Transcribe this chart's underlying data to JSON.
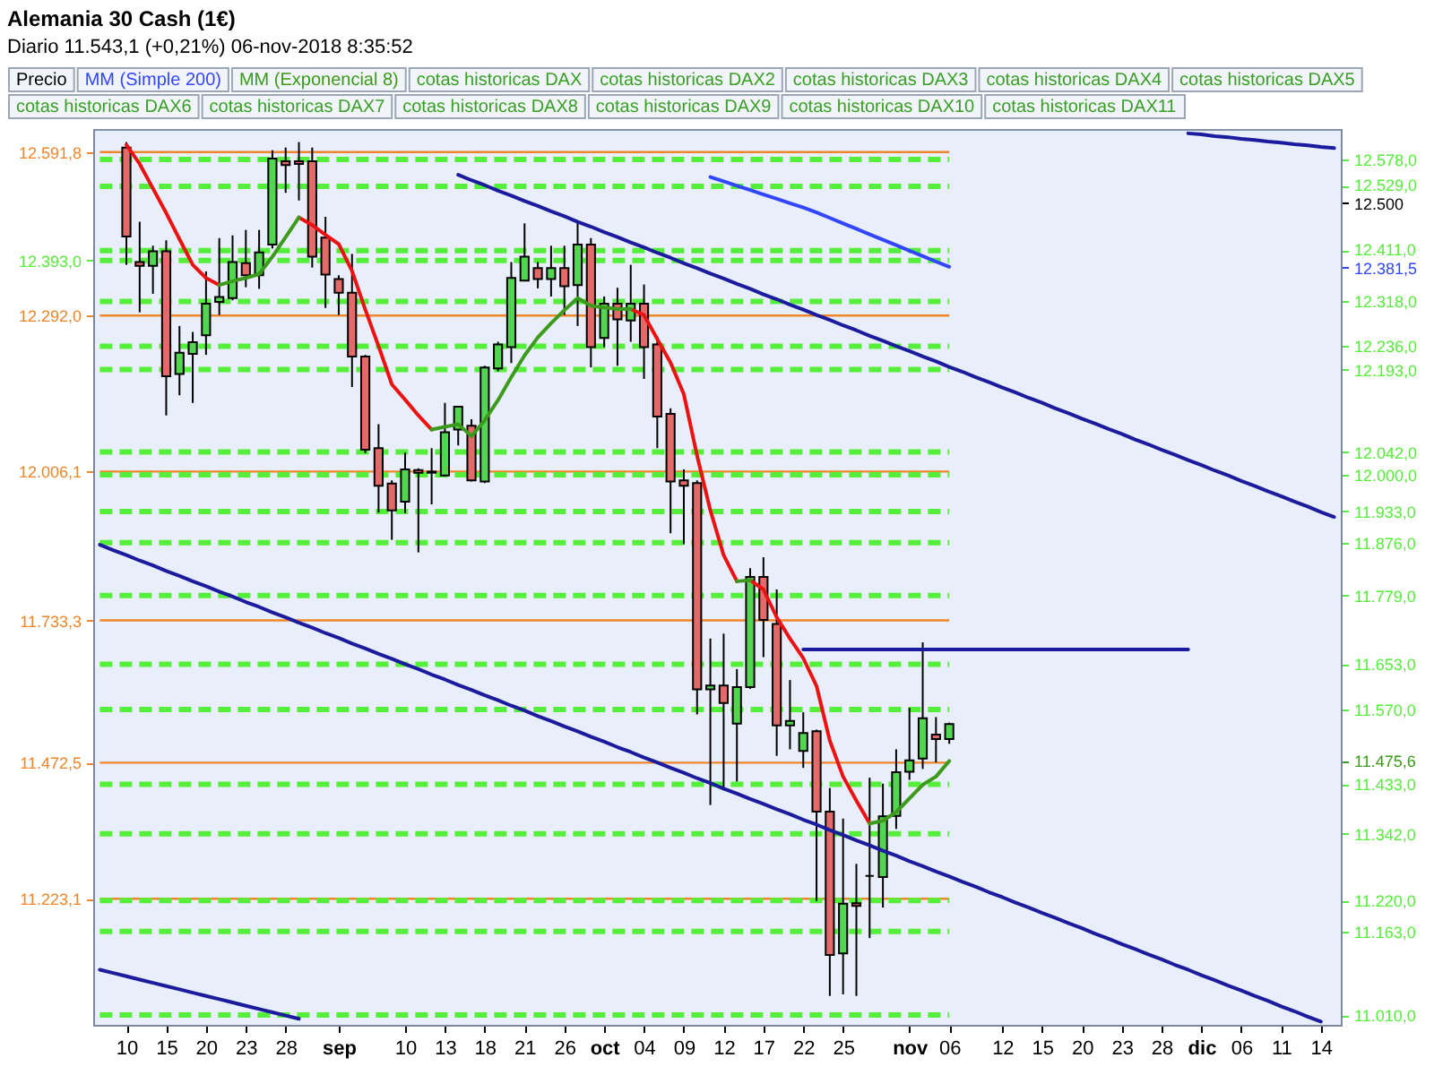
{
  "chart_data": {
    "type": "candlestick",
    "title": "Alemania 30 Cash (1€)",
    "subtitle": "Diario 11.543,1 (+0,21%) 06-nov-2018 8:35:52",
    "categories": [
      null,
      null,
      "10",
      null,
      null,
      "15",
      null,
      null,
      "20",
      null,
      null,
      "23",
      null,
      null,
      "28",
      null,
      null,
      null,
      "sep",
      null,
      null,
      null,
      null,
      "10",
      null,
      null,
      "13",
      null,
      null,
      "18",
      null,
      null,
      "21",
      null,
      null,
      "26",
      null,
      null,
      "oct",
      null,
      null,
      "04",
      null,
      null,
      "09",
      null,
      null,
      "12",
      null,
      null,
      "17",
      null,
      null,
      "22",
      null,
      null,
      "25",
      null,
      null,
      null,
      null,
      "nov",
      null,
      null,
      "06",
      null,
      null,
      null,
      "12",
      null,
      null,
      "15",
      null,
      null,
      "20",
      null,
      null,
      "23",
      null,
      null,
      "28",
      null,
      null,
      "dic",
      null,
      null,
      "06",
      null,
      null,
      "11",
      null,
      null,
      "14",
      null
    ],
    "ylim": [
      10992,
      12634
    ],
    "yticks": [
      {
        "value": 12578,
        "label": "12.578,0"
      },
      {
        "value": 12529,
        "label": "12.529,0"
      },
      {
        "value": 12500,
        "label": "12.500"
      },
      {
        "value": 12411,
        "label": "12.411,0"
      },
      {
        "value": 12381.5,
        "label": "12.381,5"
      },
      {
        "value": 12318,
        "label": "12.318,0"
      },
      {
        "value": 12236,
        "label": "12.236,0"
      },
      {
        "value": 12193,
        "label": "12.193,0"
      },
      {
        "value": 12042,
        "label": "12.042,0"
      },
      {
        "value": 12000,
        "label": "12.000,0"
      },
      {
        "value": 11933,
        "label": "11.933,0"
      },
      {
        "value": 11876,
        "label": "11.876,0"
      },
      {
        "value": 11779,
        "label": "11.779,0"
      },
      {
        "value": 11653,
        "label": "11.653,0"
      },
      {
        "value": 11570,
        "label": "11.570,0"
      },
      {
        "value": 11475.6,
        "label": "11.475,6"
      },
      {
        "value": 11433,
        "label": "11.433,0"
      },
      {
        "value": 11342,
        "label": "11.342,0"
      },
      {
        "value": 11220,
        "label": "11.220,0"
      },
      {
        "value": 11163,
        "label": "11.163,0"
      },
      {
        "value": 11010,
        "label": "11.010,0"
      }
    ],
    "y2lim": [
      10992,
      12634
    ],
    "y2ticks": [
      {
        "value": 12591.8,
        "label": "12.591,8"
      },
      {
        "value": 12393,
        "label": "12.393,0"
      },
      {
        "value": 12292,
        "label": "12.292,0"
      },
      {
        "value": 12006.1,
        "label": "12.006,1"
      },
      {
        "value": 11733.3,
        "label": "11.733,3"
      },
      {
        "value": 11472.5,
        "label": "11.472,5"
      },
      {
        "value": 11223.1,
        "label": "11.223,1"
      }
    ],
    "series": [
      {
        "name": "Precio",
        "color": "#000000",
        "ohlc": [
          null,
          null,
          [
            12600,
            12610,
            12385,
            12437
          ],
          [
            12390,
            12464,
            12298,
            12383
          ],
          [
            12383,
            12420,
            12332,
            12410
          ],
          [
            12410,
            12430,
            12109,
            12181
          ],
          [
            12185,
            12273,
            12146,
            12224
          ],
          [
            12222,
            12262,
            12132,
            12243
          ],
          [
            12256,
            12373,
            12220,
            12314
          ],
          [
            12317,
            12434,
            12293,
            12326
          ],
          [
            12324,
            12439,
            12320,
            12390
          ],
          [
            12388,
            12449,
            12344,
            12366
          ],
          [
            12366,
            12449,
            12341,
            12408
          ],
          [
            12422,
            12595,
            12415,
            12580
          ],
          [
            12575,
            12600,
            12517,
            12568
          ],
          [
            12575,
            12610,
            12503,
            12570
          ],
          [
            12575,
            12600,
            12380,
            12400
          ],
          [
            12435,
            12473,
            12306,
            12367
          ],
          [
            12359,
            12366,
            12293,
            12334
          ],
          [
            12334,
            12405,
            12161,
            12217
          ],
          [
            12217,
            12220,
            12040,
            12046
          ],
          [
            12049,
            12093,
            11931,
            11980
          ],
          [
            11984,
            11990,
            11881,
            11935
          ],
          [
            11951,
            12041,
            11930,
            12010
          ],
          [
            12009,
            12012,
            11858,
            12004
          ],
          [
            12004,
            12049,
            11946,
            12006
          ],
          [
            11999,
            12132,
            11998,
            12078
          ],
          [
            12083,
            12125,
            12054,
            12125
          ],
          [
            12090,
            12102,
            11988,
            11990
          ],
          [
            11988,
            12200,
            11985,
            12197
          ],
          [
            12195,
            12244,
            12190,
            12239
          ],
          [
            12234,
            12390,
            12205,
            12361
          ],
          [
            12356,
            12461,
            12356,
            12400
          ],
          [
            12379,
            12390,
            12342,
            12359
          ],
          [
            12359,
            12420,
            12327,
            12379
          ],
          [
            12379,
            12420,
            12293,
            12346
          ],
          [
            12348,
            12464,
            12273,
            12422
          ],
          [
            12422,
            12434,
            12197,
            12234
          ],
          [
            12251,
            12327,
            12234,
            12314
          ],
          [
            12314,
            12343,
            12200,
            12285
          ],
          [
            12283,
            12385,
            12244,
            12314
          ],
          [
            12314,
            12349,
            12176,
            12234
          ],
          [
            12239,
            12254,
            12049,
            12107
          ],
          [
            12112,
            12122,
            11893,
            11988
          ],
          [
            11990,
            12010,
            11873,
            11980
          ],
          [
            11985,
            11990,
            11561,
            11607
          ],
          [
            11607,
            11700,
            11395,
            11614
          ],
          [
            11614,
            11709,
            11422,
            11582
          ],
          [
            11544,
            11644,
            11438,
            11611
          ],
          [
            11611,
            11829,
            11608,
            11813
          ],
          [
            11813,
            11849,
            11666,
            11734
          ],
          [
            11727,
            11790,
            11485,
            11541
          ],
          [
            11541,
            11624,
            11497,
            11549
          ],
          [
            11494,
            11565,
            11463,
            11527
          ],
          [
            11530,
            11533,
            11219,
            11383
          ],
          [
            11383,
            11426,
            11045,
            11120
          ],
          [
            11123,
            11370,
            11048,
            11214
          ],
          [
            11215,
            11287,
            11045,
            11210
          ],
          [
            11265,
            11445,
            11151,
            11265
          ],
          [
            11263,
            11434,
            11207,
            11374
          ],
          [
            11375,
            11497,
            11351,
            11455
          ],
          [
            11456,
            11573,
            11441,
            11477
          ],
          [
            11480,
            11693,
            11461,
            11554
          ],
          [
            11524,
            11556,
            11473,
            11516
          ],
          [
            11516,
            11546,
            11507,
            11543.1
          ],
          null,
          null,
          null,
          null,
          null,
          null,
          null,
          null,
          null,
          null,
          null,
          null,
          null,
          null,
          null,
          null,
          null,
          null,
          null,
          null,
          null,
          null,
          null,
          null,
          null,
          null,
          null,
          null,
          null
        ],
        "colors": [
          null,
          null,
          "#e46a6a",
          "#e46a6a",
          "#52d652",
          "#e46a6a",
          "#52d652",
          "#52d652",
          "#52d652",
          "#52d652",
          "#52d652",
          "#e46a6a",
          "#52d652",
          "#52d652",
          "#e46a6a",
          "#e46a6a",
          "#e46a6a",
          "#e46a6a",
          "#e46a6a",
          "#e46a6a",
          "#e46a6a",
          "#e46a6a",
          "#e46a6a",
          "#52d652",
          "#e46a6a",
          "#52d652",
          "#52d652",
          "#52d652",
          "#e46a6a",
          "#52d652",
          "#52d652",
          "#52d652",
          "#52d652",
          "#e46a6a",
          "#52d652",
          "#e46a6a",
          "#52d652",
          "#e46a6a",
          "#52d652",
          "#e46a6a",
          "#52d652",
          "#e46a6a",
          "#e46a6a",
          "#e46a6a",
          "#e46a6a",
          "#e46a6a",
          "#52d652",
          "#e46a6a",
          "#52d652",
          "#52d652",
          "#e46a6a",
          "#e46a6a",
          "#52d652",
          "#52d652",
          "#e46a6a",
          "#e46a6a",
          "#52d652",
          "#e46a6a",
          "#000000",
          "#52d652",
          "#52d652",
          "#52d652",
          "#52d652",
          "#e46a6a",
          "#52d652",
          null,
          null,
          null,
          null,
          null,
          null,
          null,
          null,
          null,
          null,
          null,
          null,
          null,
          null,
          null,
          null,
          null,
          null,
          null,
          null,
          null,
          null,
          null,
          null,
          null,
          null,
          null,
          null,
          null
        ]
      },
      {
        "name": "MM (Simple 200)",
        "type": "line",
        "color": "#3346ff",
        "values": [
          null,
          null,
          null,
          null,
          null,
          null,
          null,
          null,
          null,
          null,
          null,
          null,
          null,
          null,
          null,
          null,
          null,
          null,
          null,
          null,
          null,
          null,
          null,
          null,
          null,
          null,
          null,
          null,
          null,
          null,
          null,
          null,
          null,
          null,
          null,
          null,
          null,
          null,
          null,
          null,
          null,
          null,
          null,
          null,
          null,
          null,
          12546,
          12538,
          12530,
          12522,
          12514,
          12506,
          12498,
          12490,
          12481,
          12471,
          12461,
          12451,
          12441,
          12431,
          12421,
          12411,
          12401,
          12391,
          12381.5,
          null,
          null,
          null,
          null,
          null,
          null,
          null,
          null,
          null,
          null,
          null,
          null,
          null,
          null,
          null,
          null,
          null,
          null,
          null,
          null,
          null,
          null,
          null,
          null,
          null,
          null,
          null,
          null,
          null
        ]
      },
      {
        "type": "line",
        "color": "#1b1b9e",
        "values": [
          null,
          null,
          null,
          null,
          null,
          null,
          null,
          null,
          null,
          null,
          null,
          null,
          null,
          null,
          null,
          null,
          null,
          null,
          null,
          null,
          null,
          null,
          null,
          null,
          null,
          null,
          null,
          12550,
          12540,
          12531,
          12521,
          12512,
          12502,
          12493,
          12483,
          12474,
          12464,
          12455,
          12445,
          12436,
          12426,
          12417,
          12407,
          12398,
          12388,
          12379,
          12369,
          12360,
          12350,
          12341,
          12331,
          12322,
          12312,
          12303,
          12293,
          12284,
          12274,
          12265,
          12255,
          12246,
          12236,
          12227,
          12217,
          12208,
          12198,
          12189,
          12179,
          12170,
          12160,
          12151,
          12141,
          12132,
          12122,
          12113,
          12103,
          12094,
          12084,
          12075,
          12065,
          12056,
          12046,
          12037,
          12027,
          12018,
          12008,
          11999,
          11989,
          11980,
          11970,
          11961,
          11951,
          11942,
          11932,
          11923
        ]
      },
      {
        "type": "line",
        "color": "#1b1b9e",
        "values": [
          11872,
          11862,
          11853,
          11843,
          11834,
          11824,
          11815,
          11805,
          11796,
          11786,
          11777,
          11767,
          11758,
          11748,
          11739,
          11729,
          11720,
          11710,
          11701,
          11691,
          11682,
          11672,
          11663,
          11653,
          11644,
          11634,
          11625,
          11615,
          11606,
          11596,
          11587,
          11577,
          11568,
          11558,
          11549,
          11539,
          11530,
          11520,
          11511,
          11501,
          11492,
          11482,
          11473,
          11463,
          11454,
          11444,
          11435,
          11425,
          11416,
          11406,
          11397,
          11387,
          11378,
          11368,
          11359,
          11349,
          11340,
          11330,
          11321,
          11311,
          11302,
          11292,
          11283,
          11273,
          11264,
          11254,
          11245,
          11235,
          11226,
          11216,
          11207,
          11197,
          11188,
          11178,
          11169,
          11159,
          11150,
          11140,
          11131,
          11121,
          11112,
          11102,
          11093,
          11083,
          11074,
          11064,
          11055,
          11045,
          11036,
          11026,
          11017,
          11007,
          10998,
          null
        ]
      },
      {
        "type": "line",
        "color": "#1b1b9e",
        "values": [
          11093,
          11087,
          11081,
          11075,
          11069,
          11063,
          11057,
          11051,
          11045,
          11039,
          11033,
          11027,
          11021,
          11015,
          11009,
          11003,
          null,
          null,
          null,
          null,
          null,
          null,
          null,
          null,
          null,
          null,
          null,
          null,
          null,
          null,
          null,
          null,
          null,
          null,
          null,
          null,
          null,
          null,
          null,
          null,
          null,
          null,
          null,
          null,
          null,
          null,
          null,
          null,
          null,
          null,
          null,
          null,
          null,
          null,
          null,
          null,
          null,
          null,
          null,
          null,
          null,
          null,
          null,
          null,
          null,
          null,
          null,
          null,
          null,
          null,
          null,
          null,
          null,
          null,
          null,
          null,
          null,
          null,
          null,
          null,
          null,
          null,
          null,
          null,
          null,
          null,
          null,
          null,
          null,
          null,
          null,
          null,
          null,
          null
        ]
      },
      {
        "type": "line",
        "color": "#1b1b9e",
        "values": [
          null,
          null,
          null,
          null,
          null,
          null,
          null,
          null,
          null,
          null,
          null,
          null,
          null,
          null,
          null,
          null,
          null,
          null,
          null,
          null,
          null,
          null,
          null,
          null,
          null,
          null,
          null,
          null,
          null,
          null,
          null,
          null,
          null,
          null,
          null,
          null,
          null,
          null,
          null,
          null,
          null,
          null,
          null,
          null,
          null,
          null,
          null,
          null,
          null,
          null,
          null,
          null,
          null,
          null,
          null,
          null,
          null,
          null,
          null,
          null,
          null,
          null,
          null,
          null,
          null,
          null,
          null,
          null,
          null,
          null,
          null,
          null,
          null,
          null,
          null,
          null,
          null,
          null,
          null,
          null,
          null,
          null,
          12626,
          12624,
          12621,
          12619,
          12616,
          12614,
          12611,
          12609,
          12606,
          12604,
          12601,
          12599
        ]
      },
      {
        "type": "line",
        "color": "#1b1b9e",
        "values": [
          null,
          null,
          null,
          null,
          null,
          null,
          null,
          null,
          null,
          null,
          null,
          null,
          null,
          null,
          null,
          null,
          null,
          null,
          null,
          null,
          null,
          null,
          null,
          null,
          null,
          null,
          null,
          null,
          null,
          null,
          null,
          null,
          null,
          null,
          null,
          null,
          null,
          null,
          null,
          null,
          null,
          null,
          null,
          null,
          null,
          null,
          null,
          null,
          null,
          null,
          null,
          null,
          null,
          11680,
          11680,
          11680,
          11680,
          11680,
          11680,
          11680,
          11680,
          11680,
          11680,
          11680,
          11680,
          11680,
          11680,
          11680,
          11680,
          11680,
          11680,
          11680,
          11680,
          11680,
          11680,
          11680,
          11680,
          11680,
          11680,
          11680,
          11680,
          11680,
          11680,
          null,
          null,
          null,
          null,
          null,
          null,
          null,
          null,
          null,
          null,
          null
        ]
      },
      {
        "type": "line",
        "color": "#ee1111",
        "values": [
          null,
          null,
          12605,
          12570,
          12525,
          12480,
          12432,
          12385,
          12361,
          12348,
          null,
          null,
          null,
          null,
          null,
          12472,
          12458,
          12440,
          12423,
          12374,
          12303,
          12236,
          12166,
          12138,
          12109,
          12083,
          null,
          null,
          null,
          null,
          null,
          null,
          null,
          null,
          null,
          null,
          null,
          null,
          null,
          null,
          12304,
          12293,
          12249,
          12206,
          12148,
          12035,
          11935,
          11853,
          11805,
          null,
          null,
          null,
          null,
          null,
          null,
          null,
          null,
          null,
          null,
          null,
          null,
          null,
          null,
          null,
          null,
          null,
          null,
          null,
          null,
          null,
          null,
          null,
          null,
          null,
          null,
          null,
          null,
          null,
          null,
          null,
          null,
          null,
          null,
          null,
          null,
          null,
          null,
          null,
          null,
          null,
          null,
          null,
          null,
          null
        ]
      },
      {
        "type": "line",
        "color": "#ee1111",
        "values": [
          null,
          null,
          null,
          null,
          null,
          null,
          null,
          null,
          null,
          null,
          null,
          null,
          null,
          null,
          null,
          null,
          null,
          null,
          null,
          null,
          null,
          null,
          null,
          null,
          null,
          null,
          null,
          null,
          null,
          null,
          null,
          null,
          null,
          null,
          null,
          null,
          null,
          null,
          null,
          null,
          null,
          null,
          null,
          null,
          null,
          null,
          null,
          null,
          null,
          11807,
          11790,
          11739,
          11700,
          11664,
          11613,
          11513,
          11447,
          11403,
          11361,
          null,
          null,
          null,
          null,
          null,
          null,
          null,
          null,
          null,
          null,
          null,
          null,
          null,
          null,
          null,
          null,
          null,
          null,
          null,
          null,
          null,
          null,
          null,
          null,
          null,
          null,
          null,
          null,
          null,
          null,
          null,
          null,
          null,
          null,
          null
        ]
      },
      {
        "name": "MM (Exponencial 8)",
        "type": "line",
        "color": "#3c9a1c",
        "values": [
          null,
          null,
          null,
          null,
          null,
          null,
          null,
          null,
          null,
          12348,
          12355,
          12361,
          12368,
          12400,
          12436,
          12472,
          null,
          null,
          null,
          null,
          null,
          null,
          null,
          null,
          null,
          12083,
          12088,
          12093,
          12071,
          12100,
          12137,
          12179,
          12219,
          12252,
          12278,
          12302,
          12324,
          12310,
          12307,
          12304,
          12304,
          null,
          null,
          null,
          null,
          null,
          null,
          null,
          11805,
          11807,
          null,
          null,
          null,
          null,
          null,
          null,
          null,
          null,
          11361,
          11366,
          11382,
          11407,
          11432,
          11447,
          11475.6,
          null,
          null,
          null,
          null,
          null,
          null,
          null,
          null,
          null,
          null,
          null,
          null,
          null,
          null,
          null,
          null,
          null,
          null,
          null,
          null,
          null,
          null,
          null,
          null,
          null,
          null,
          null,
          null,
          null
        ]
      }
    ],
    "ref_lines": [
      {
        "axis": "y2",
        "value": 12591.8,
        "color": "#f0862a",
        "line_style": "solid"
      },
      {
        "axis": "y2",
        "value": 12292,
        "color": "#f0862a",
        "line_style": "solid"
      },
      {
        "axis": "y2",
        "value": 12006.1,
        "color": "#f0862a",
        "line_style": "solid"
      },
      {
        "axis": "y2",
        "value": 11733.3,
        "color": "#f0862a",
        "line_style": "solid"
      },
      {
        "axis": "y2",
        "value": 11472.5,
        "color": "#f0862a",
        "line_style": "solid"
      },
      {
        "axis": "y2",
        "value": 11223.1,
        "color": "#f0862a",
        "line_style": "solid"
      },
      {
        "axis": "y2",
        "value": 12393,
        "color": "#55ee3a",
        "line_style": "dashed"
      },
      {
        "axis": "y",
        "value": 12578,
        "color": "#55ee3a",
        "line_style": "dashed"
      },
      {
        "axis": "y",
        "value": 12529,
        "color": "#55ee3a",
        "line_style": "dashed"
      },
      {
        "axis": "y",
        "value": 12411,
        "color": "#55ee3a",
        "line_style": "dashed"
      },
      {
        "axis": "y",
        "value": 12318,
        "color": "#55ee3a",
        "line_style": "dashed"
      },
      {
        "axis": "y",
        "value": 12236,
        "color": "#55ee3a",
        "line_style": "dashed"
      },
      {
        "axis": "y",
        "value": 12193,
        "color": "#55ee3a",
        "line_style": "dashed"
      },
      {
        "axis": "y",
        "value": 12042,
        "color": "#55ee3a",
        "line_style": "dashed"
      },
      {
        "axis": "y",
        "value": 12000,
        "color": "#55ee3a",
        "line_style": "dashed"
      },
      {
        "axis": "y",
        "value": 11933,
        "color": "#55ee3a",
        "line_style": "dashed"
      },
      {
        "axis": "y",
        "value": 11876,
        "color": "#55ee3a",
        "line_style": "dashed"
      },
      {
        "axis": "y",
        "value": 11779,
        "color": "#55ee3a",
        "line_style": "dashed"
      },
      {
        "axis": "y",
        "value": 11653,
        "color": "#55ee3a",
        "line_style": "dashed"
      },
      {
        "axis": "y",
        "value": 11570,
        "color": "#55ee3a",
        "line_style": "dashed"
      },
      {
        "axis": "y",
        "value": 11433,
        "color": "#55ee3a",
        "line_style": "dashed"
      },
      {
        "axis": "y",
        "value": 11342,
        "color": "#55ee3a",
        "line_style": "dashed"
      },
      {
        "axis": "y",
        "value": 11220,
        "color": "#55ee3a",
        "line_style": "dashed"
      },
      {
        "axis": "y",
        "value": 11163,
        "color": "#55ee3a",
        "line_style": "dashed"
      },
      {
        "axis": "y",
        "value": 11010,
        "color": "#55ee3a",
        "line_style": "dashed"
      }
    ],
    "annotations": [
      "cotas historicas DAX",
      "cotas historicas DAX2",
      "cotas historicas DAX3",
      "cotas historicas DAX4",
      "cotas historicas DAX5",
      "cotas historicas DAX6",
      "cotas historicas DAX7",
      "cotas historicas DAX8",
      "cotas historicas DAX9",
      "cotas historicas DAX10",
      "cotas historicas DAX11"
    ],
    "legend": "top"
  }
}
